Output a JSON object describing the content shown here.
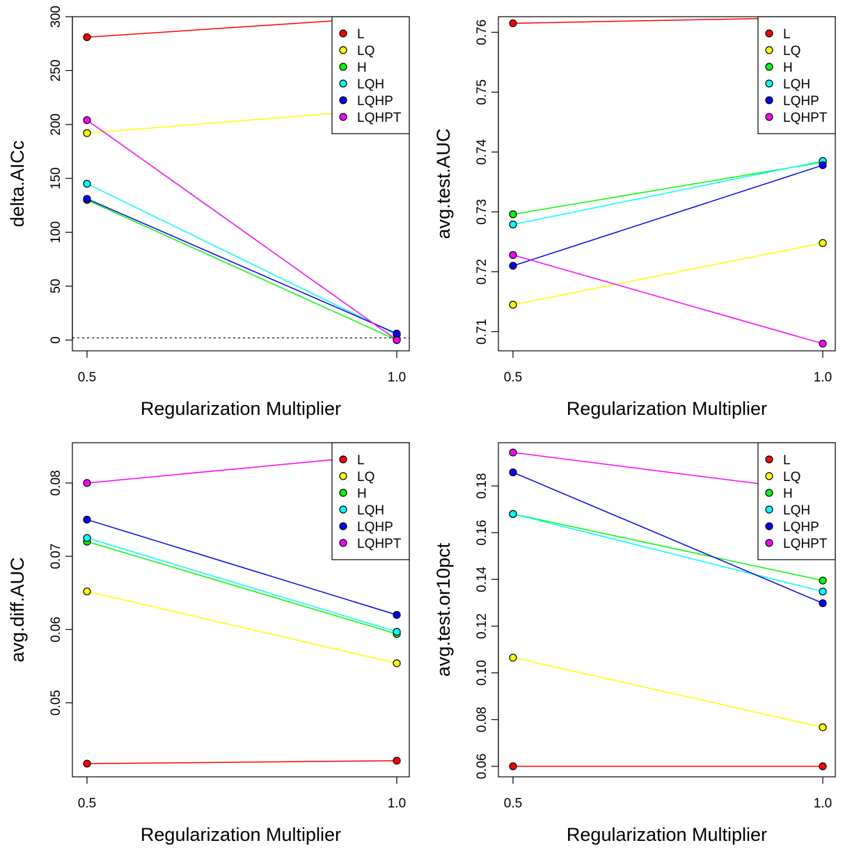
{
  "legend_entries": [
    {
      "name": "L",
      "color": "#ff0000"
    },
    {
      "name": "LQ",
      "color": "#ffff00"
    },
    {
      "name": "H",
      "color": "#00ff00"
    },
    {
      "name": "LQH",
      "color": "#00ffff"
    },
    {
      "name": "LQHP",
      "color": "#0000ff"
    },
    {
      "name": "LQHPT",
      "color": "#ff00ff"
    }
  ],
  "chart_data": [
    {
      "type": "line",
      "xlabel": "Regularization Multiplier",
      "ylabel": "delta.AICc",
      "x": [
        0.5,
        1.0
      ],
      "x_ticks": [
        "0.5",
        "1.0"
      ],
      "ylim": [
        -10,
        300
      ],
      "y_ticks": [
        "0",
        "50",
        "100",
        "150",
        "200",
        "250",
        "300"
      ],
      "y_tick_values": [
        0,
        50,
        100,
        150,
        200,
        250,
        300
      ],
      "reference_line": 2,
      "legend_position": "top-right",
      "series": [
        {
          "name": "L",
          "values": [
            281,
            300
          ]
        },
        {
          "name": "LQ",
          "values": [
            192,
            215
          ]
        },
        {
          "name": "H",
          "values": [
            130,
            0
          ]
        },
        {
          "name": "LQH",
          "values": [
            145,
            5
          ]
        },
        {
          "name": "LQHP",
          "values": [
            131,
            6
          ]
        },
        {
          "name": "LQHPT",
          "values": [
            204,
            0
          ]
        }
      ]
    },
    {
      "type": "line",
      "xlabel": "Regularization Multiplier",
      "ylabel": "avg.test.AUC",
      "x": [
        0.5,
        1.0
      ],
      "x_ticks": [
        "0.5",
        "1.0"
      ],
      "ylim": [
        0.7068,
        0.7626
      ],
      "y_ticks": [
        "0.71",
        "0.72",
        "0.73",
        "0.74",
        "0.75",
        "0.76"
      ],
      "y_tick_values": [
        0.71,
        0.72,
        0.73,
        0.74,
        0.75,
        0.76
      ],
      "legend_position": "top-right",
      "series": [
        {
          "name": "L",
          "values": [
            0.7615,
            0.7625
          ]
        },
        {
          "name": "LQ",
          "values": [
            0.7145,
            0.7248
          ]
        },
        {
          "name": "H",
          "values": [
            0.7296,
            0.7383
          ]
        },
        {
          "name": "LQH",
          "values": [
            0.7279,
            0.7385
          ]
        },
        {
          "name": "LQHP",
          "values": [
            0.721,
            0.7378
          ]
        },
        {
          "name": "LQHPT",
          "values": [
            0.7228,
            0.708
          ]
        }
      ]
    },
    {
      "type": "line",
      "xlabel": "Regularization Multiplier",
      "ylabel": "avg.diff.AUC",
      "x": [
        0.5,
        1.0
      ],
      "x_ticks": [
        "0.5",
        "1.0"
      ],
      "ylim": [
        0.0399,
        0.0855
      ],
      "y_ticks": [
        "0.05",
        "0.06",
        "0.07",
        "0.08"
      ],
      "y_tick_values": [
        0.05,
        0.06,
        0.07,
        0.08
      ],
      "legend_position": "top-right",
      "series": [
        {
          "name": "L",
          "values": [
            0.0417,
            0.0421
          ]
        },
        {
          "name": "LQ",
          "values": [
            0.0652,
            0.0554
          ]
        },
        {
          "name": "H",
          "values": [
            0.072,
            0.0594
          ]
        },
        {
          "name": "LQH",
          "values": [
            0.0725,
            0.0597
          ]
        },
        {
          "name": "LQHP",
          "values": [
            0.075,
            0.062
          ]
        },
        {
          "name": "LQHPT",
          "values": [
            0.08,
            0.084
          ]
        }
      ]
    },
    {
      "type": "line",
      "xlabel": "Regularization Multiplier",
      "ylabel": "avg.test.or10pct",
      "x": [
        0.5,
        1.0
      ],
      "x_ticks": [
        "0.5",
        "1.0"
      ],
      "ylim": [
        0.0555,
        0.1985
      ],
      "y_ticks": [
        "0.06",
        "0.08",
        "0.10",
        "0.12",
        "0.14",
        "0.16",
        "0.18"
      ],
      "y_tick_values": [
        0.06,
        0.08,
        0.1,
        0.12,
        0.14,
        0.16,
        0.18
      ],
      "legend_position": "top-right",
      "series": [
        {
          "name": "L",
          "values": [
            0.06,
            0.06
          ]
        },
        {
          "name": "LQ",
          "values": [
            0.1065,
            0.0767
          ]
        },
        {
          "name": "H",
          "values": [
            0.168,
            0.1395
          ]
        },
        {
          "name": "LQH",
          "values": [
            0.168,
            0.1348
          ]
        },
        {
          "name": "LQHP",
          "values": [
            0.1858,
            0.1298
          ]
        },
        {
          "name": "LQHPT",
          "values": [
            0.1943,
            0.1775
          ]
        }
      ]
    }
  ]
}
